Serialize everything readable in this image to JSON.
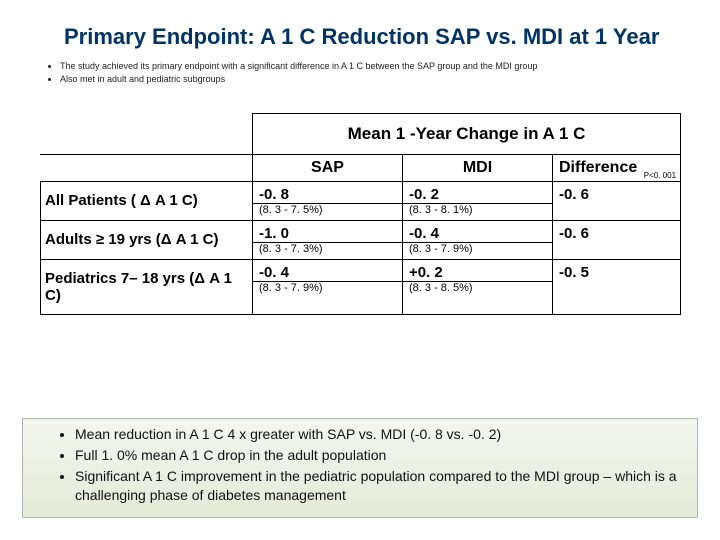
{
  "title": "Primary Endpoint: A 1 C Reduction SAP vs. MDI at 1 Year",
  "top_bullets": [
    "The study achieved its primary endpoint with a significant difference in A 1 C between the SAP group and the MDI group",
    "Also met in adult and pediatric subgroups"
  ],
  "table": {
    "spanning_header": "Mean 1 -Year Change in A 1 C",
    "col_headers": {
      "sap": "SAP",
      "mdi": "MDI",
      "diff": "Difference"
    },
    "pvalue": "P<0. 001",
    "rows": [
      {
        "label": "All Patients ( Δ A 1 C)",
        "sap": "-0. 8",
        "sap_sub": "(8. 3 - 7. 5%)",
        "mdi": "-0. 2",
        "mdi_sub": "(8. 3 - 8. 1%)",
        "diff": "-0. 6"
      },
      {
        "label": "Adults ≥ 19 yrs (Δ A 1 C)",
        "sap": "-1. 0",
        "sap_sub": "(8. 3 - 7. 3%)",
        "mdi": "-0. 4",
        "mdi_sub": "(8. 3 - 7. 9%)",
        "diff": "-0. 6"
      },
      {
        "label": "Pediatrics 7– 18 yrs (Δ A 1 C)",
        "sap": "-0. 4",
        "sap_sub": "(8. 3 - 7. 9%)",
        "mdi": "+0. 2",
        "mdi_sub": "(8. 3 - 8. 5%)",
        "diff": "-0. 5"
      }
    ]
  },
  "bottom_bullets": [
    "Mean reduction in A 1 C 4 x greater with SAP vs. MDI (-0. 8 vs. -0. 2)",
    "Full 1. 0% mean A 1 C drop in the adult population",
    "Significant A 1 C improvement in the pediatric population compared to the MDI group – which is a challenging phase of diabetes management"
  ],
  "colors": {
    "title": "#003366",
    "box_border": "#aeb8aa",
    "box_bg_top": "#f4f6f0",
    "box_bg_bottom": "#e4ead8"
  }
}
